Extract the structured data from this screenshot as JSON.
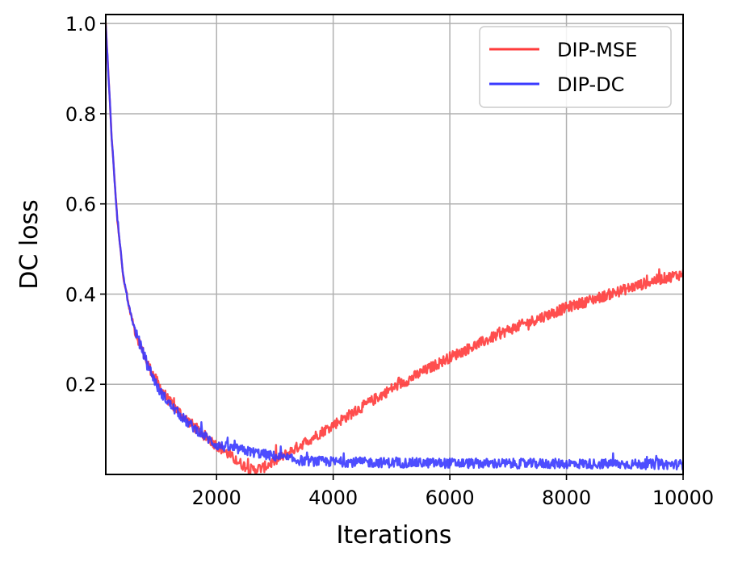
{
  "chart_data": {
    "type": "line",
    "title": "",
    "xlabel": "Iterations",
    "ylabel": "DC loss",
    "xlim": [
      100,
      10000
    ],
    "ylim": [
      0.0,
      1.02
    ],
    "grid": true,
    "legend_position": "top-right",
    "x_ticks": [
      2000,
      4000,
      6000,
      8000,
      10000
    ],
    "x_tick_labels": [
      "2000",
      "4000",
      "6000",
      "8000",
      "10000"
    ],
    "y_ticks": [
      0.2,
      0.4,
      0.6,
      0.8,
      1.0
    ],
    "y_tick_labels": [
      "0.2",
      "0.4",
      "0.6",
      "0.8",
      "1.0"
    ],
    "series": [
      {
        "name": "DIP-MSE",
        "color": "#ff3b3b",
        "noise": 0.012,
        "x": [
          100,
          200,
          300,
          400,
          500,
          600,
          800,
          1000,
          1200,
          1500,
          1800,
          2000,
          2200,
          2400,
          2600,
          2800,
          3000,
          3200,
          3500,
          4000,
          4500,
          5000,
          5500,
          6000,
          6500,
          7000,
          7500,
          8000,
          8500,
          9000,
          9500,
          10000
        ],
        "values": [
          1.0,
          0.75,
          0.56,
          0.44,
          0.37,
          0.32,
          0.25,
          0.2,
          0.16,
          0.12,
          0.085,
          0.065,
          0.045,
          0.025,
          0.01,
          0.015,
          0.03,
          0.045,
          0.07,
          0.11,
          0.15,
          0.19,
          0.225,
          0.26,
          0.29,
          0.32,
          0.345,
          0.37,
          0.39,
          0.41,
          0.43,
          0.445
        ]
      },
      {
        "name": "DIP-DC",
        "color": "#3a3aff",
        "noise": 0.011,
        "x": [
          100,
          200,
          300,
          400,
          500,
          600,
          800,
          1000,
          1200,
          1500,
          1800,
          2000,
          2200,
          2400,
          2600,
          2800,
          3000,
          3200,
          3500,
          4000,
          5000,
          6000,
          7000,
          8000,
          9000,
          10000
        ],
        "values": [
          1.0,
          0.75,
          0.56,
          0.44,
          0.37,
          0.32,
          0.25,
          0.19,
          0.155,
          0.115,
          0.085,
          0.065,
          0.06,
          0.055,
          0.05,
          0.045,
          0.04,
          0.035,
          0.03,
          0.028,
          0.026,
          0.025,
          0.024,
          0.024,
          0.023,
          0.022
        ]
      }
    ]
  }
}
